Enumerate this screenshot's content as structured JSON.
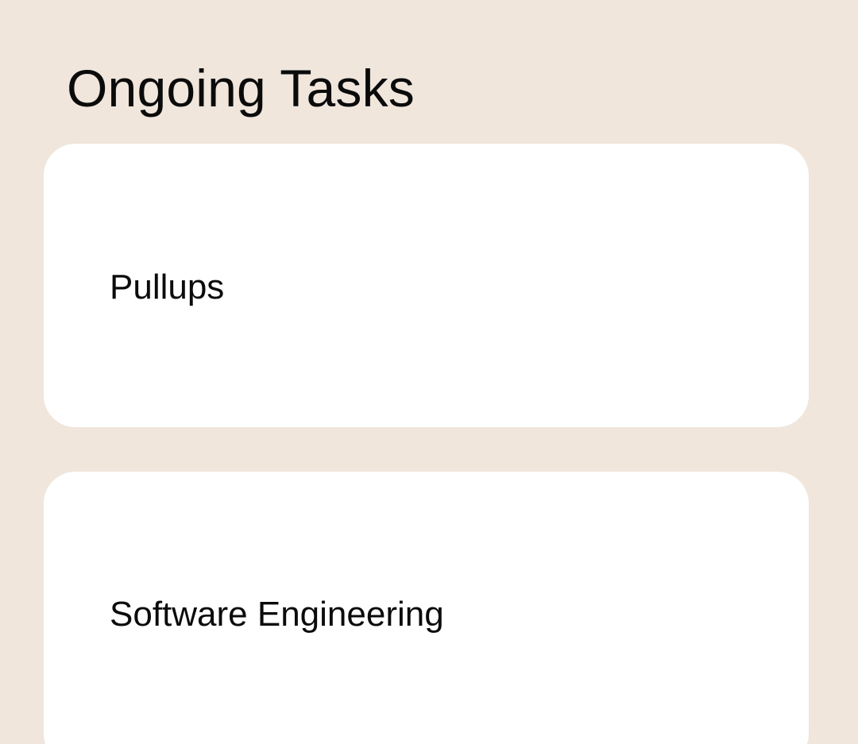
{
  "header": {
    "title": "Ongoing Tasks"
  },
  "tasks": [
    {
      "name": "Pullups"
    },
    {
      "name": "Software Engineering"
    }
  ],
  "colors": {
    "background": "#F0E6DC",
    "card": "#FFFFFF",
    "text": "#111111"
  }
}
